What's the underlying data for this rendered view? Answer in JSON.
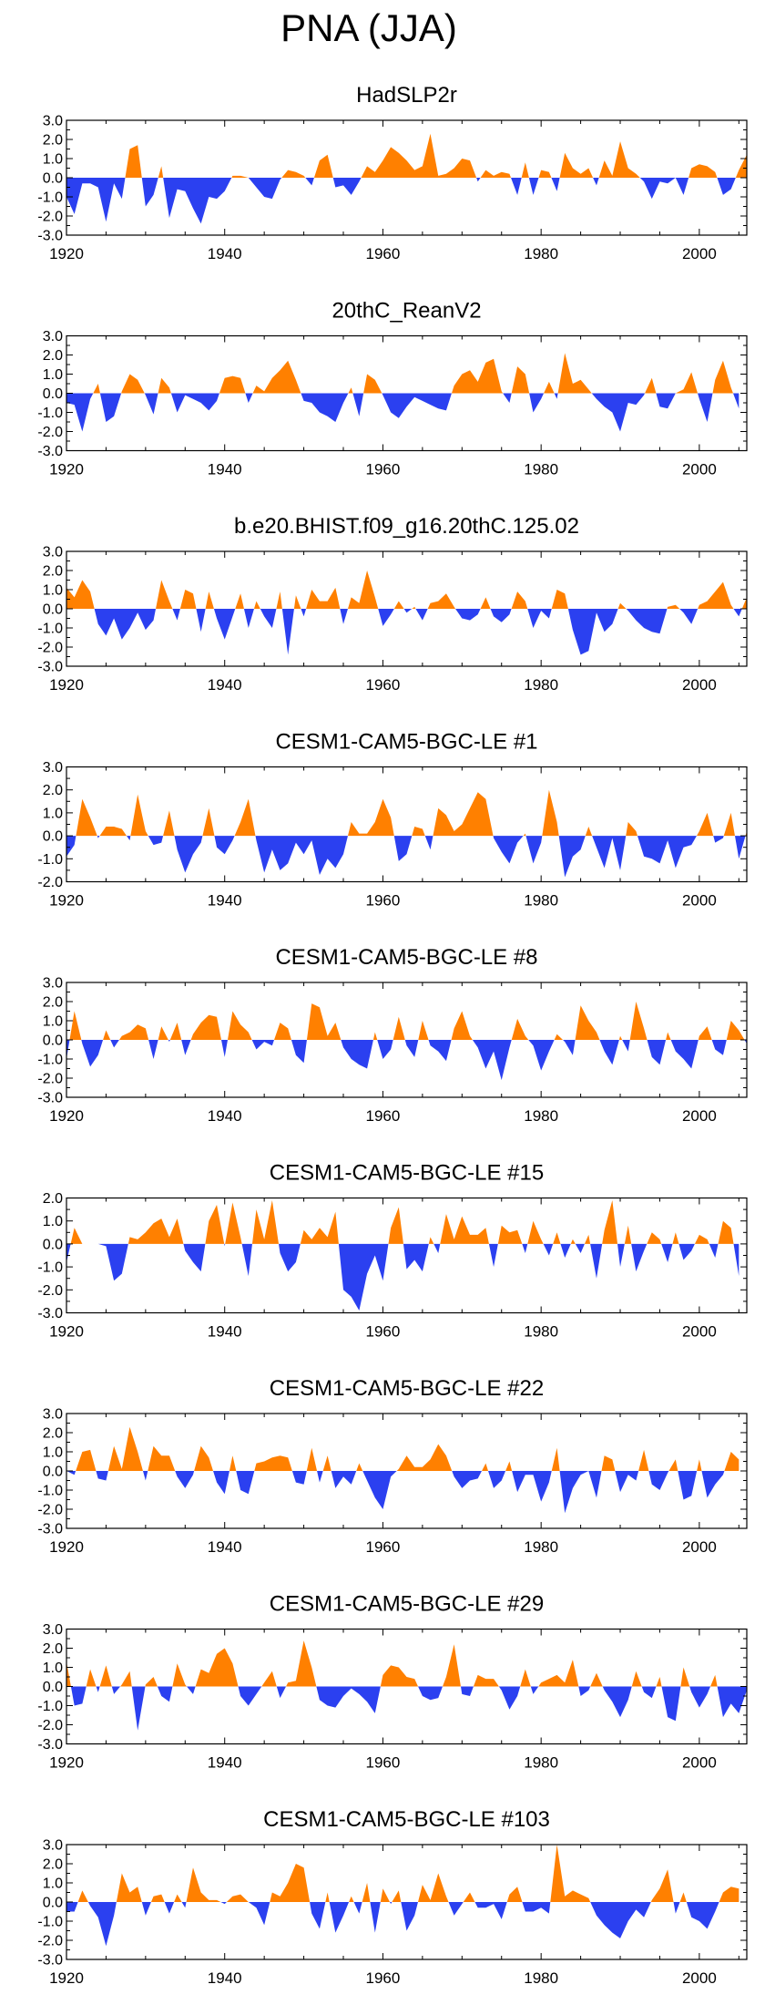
{
  "page_title": "PNA (JJA)",
  "colors": {
    "positive": "#ff8000",
    "negative": "#2b40f0",
    "axis": "#000000"
  },
  "chart_data": [
    {
      "type": "area",
      "title": "HadSLP2r",
      "xlim": [
        1920,
        2006
      ],
      "ylim": [
        -3,
        3
      ],
      "xticks": [
        "1920",
        "1940",
        "1960",
        "1980",
        "2000"
      ],
      "yticks": [
        "3.0",
        "2.0",
        "1.0",
        "0.0",
        "-1.0",
        "-2.0",
        "-3.0"
      ],
      "x_start": 1920,
      "values": [
        -1.0,
        -1.9,
        -0.3,
        -0.3,
        -0.5,
        -2.3,
        -0.3,
        -1.1,
        1.5,
        1.7,
        -1.5,
        -0.9,
        0.6,
        -2.1,
        -0.6,
        -0.7,
        -1.6,
        -2.4,
        -1.0,
        -1.1,
        -0.7,
        0.1,
        0.1,
        0.0,
        -0.5,
        -1.0,
        -1.1,
        -0.1,
        0.4,
        0.3,
        0.1,
        -0.4,
        0.9,
        1.2,
        -0.5,
        -0.4,
        -0.9,
        -0.2,
        0.6,
        0.3,
        0.9,
        1.6,
        1.3,
        0.9,
        0.4,
        0.6,
        2.3,
        0.1,
        0.2,
        0.5,
        1.0,
        0.9,
        -0.2,
        0.4,
        0.1,
        0.3,
        0.2,
        -0.9,
        0.8,
        -0.9,
        0.4,
        0.3,
        -0.7,
        1.3,
        0.5,
        0.2,
        0.5,
        -0.4,
        0.9,
        0.1,
        1.9,
        0.5,
        0.2,
        -0.2,
        -1.1,
        -0.2,
        -0.3,
        0.0,
        -0.9,
        0.5,
        0.7,
        0.6,
        0.3,
        -0.9,
        -0.6,
        0.4,
        1.2
      ]
    },
    {
      "type": "area",
      "title": "20thC_ReanV2",
      "xlim": [
        1920,
        2006
      ],
      "ylim": [
        -3,
        3
      ],
      "xticks": [
        "1920",
        "1940",
        "1960",
        "1980",
        "2000"
      ],
      "yticks": [
        "3.0",
        "2.0",
        "1.0",
        "0.0",
        "-1.0",
        "-2.0",
        "-3.0"
      ],
      "x_start": 1920,
      "values": [
        -0.5,
        -0.6,
        -2.0,
        -0.3,
        0.5,
        -1.5,
        -1.2,
        0.1,
        1.0,
        0.7,
        -0.1,
        -1.1,
        0.8,
        0.3,
        -1.0,
        -0.1,
        -0.3,
        -0.5,
        -0.9,
        -0.4,
        0.8,
        0.9,
        0.8,
        -0.5,
        0.4,
        0.1,
        0.8,
        1.2,
        1.7,
        0.7,
        -0.4,
        -0.5,
        -1.0,
        -1.2,
        -1.5,
        -0.5,
        0.3,
        -1.2,
        1.0,
        0.7,
        -0.1,
        -1.0,
        -1.3,
        -0.7,
        -0.2,
        -0.4,
        -0.6,
        -0.8,
        -0.9,
        0.4,
        1.0,
        1.2,
        0.6,
        1.6,
        1.8,
        0.1,
        -0.5,
        1.4,
        1.0,
        -1.0,
        -0.3,
        0.6,
        -0.3,
        2.1,
        0.5,
        0.7,
        0.2,
        -0.3,
        -0.7,
        -1.0,
        -2.0,
        -0.5,
        -0.6,
        -0.1,
        0.8,
        -0.7,
        -0.8,
        0.0,
        0.2,
        1.1,
        -0.3,
        -1.5,
        0.7,
        1.7,
        0.3,
        -0.8
      ]
    },
    {
      "type": "area",
      "title": "b.e20.BHIST.f09_g16.20thC.125.02",
      "xlim": [
        1920,
        2006
      ],
      "ylim": [
        -3,
        3
      ],
      "xticks": [
        "1920",
        "1940",
        "1960",
        "1980",
        "2000"
      ],
      "yticks": [
        "3.0",
        "2.0",
        "1.0",
        "0.0",
        "-1.0",
        "-2.0",
        "-3.0"
      ],
      "x_start": 1920,
      "values": [
        1.1,
        0.6,
        1.5,
        0.9,
        -0.8,
        -1.4,
        -0.5,
        -1.6,
        -1.0,
        -0.2,
        -1.1,
        -0.6,
        1.5,
        0.4,
        -0.6,
        1.0,
        0.8,
        -1.2,
        0.9,
        -0.5,
        -1.6,
        -0.4,
        0.8,
        -1.0,
        0.4,
        -0.4,
        -1.0,
        0.9,
        -2.4,
        0.7,
        -0.4,
        1.0,
        0.4,
        0.4,
        1.1,
        -0.8,
        0.6,
        0.3,
        2.0,
        0.6,
        -0.9,
        -0.3,
        0.4,
        -0.2,
        0.1,
        -0.6,
        0.3,
        0.4,
        0.8,
        0.1,
        -0.5,
        -0.6,
        -0.3,
        0.6,
        -0.4,
        -0.7,
        -0.3,
        0.9,
        0.4,
        -1.0,
        -0.1,
        -0.5,
        1.0,
        0.8,
        -1.1,
        -2.4,
        -2.2,
        -0.2,
        -1.2,
        -0.8,
        0.3,
        -0.1,
        -0.6,
        -1.0,
        -1.2,
        -1.3,
        0.1,
        0.2,
        -0.2,
        -0.8,
        0.2,
        0.4,
        0.9,
        1.4,
        0.2,
        -0.4,
        0.6
      ]
    },
    {
      "type": "area",
      "title": "CESM1-CAM5-BGC-LE #1",
      "xlim": [
        1920,
        2006
      ],
      "ylim": [
        -2,
        3
      ],
      "xticks": [
        "1920",
        "1940",
        "1960",
        "1980",
        "2000"
      ],
      "yticks": [
        "3.0",
        "2.0",
        "1.0",
        "0.0",
        "-1.0",
        "-2.0"
      ],
      "x_start": 1920,
      "values": [
        -0.9,
        -0.4,
        1.6,
        0.8,
        -0.1,
        0.4,
        0.4,
        0.3,
        -0.2,
        1.8,
        0.2,
        -0.4,
        -0.3,
        1.1,
        -0.6,
        -1.6,
        -0.8,
        -0.3,
        1.2,
        -0.5,
        -0.8,
        -0.2,
        0.6,
        1.6,
        -0.2,
        -1.6,
        -0.6,
        -1.5,
        -1.2,
        -0.3,
        -0.8,
        -0.2,
        -1.7,
        -1.0,
        -1.4,
        -0.8,
        0.6,
        0.1,
        0.1,
        0.6,
        1.6,
        0.8,
        -1.1,
        -0.8,
        0.4,
        0.3,
        -0.6,
        1.2,
        0.9,
        0.2,
        0.5,
        1.2,
        1.9,
        1.6,
        -0.1,
        -0.7,
        -1.2,
        -0.3,
        0.1,
        -1.2,
        -0.3,
        2.0,
        0.6,
        -1.8,
        -0.9,
        -0.6,
        0.4,
        -0.5,
        -1.4,
        -0.1,
        -1.5,
        0.6,
        0.2,
        -0.9,
        -1.0,
        -1.2,
        -0.2,
        -1.4,
        -0.5,
        -0.4,
        0.2,
        1.0,
        -0.3,
        -0.1,
        1.0,
        -1.0,
        0.2
      ]
    },
    {
      "type": "area",
      "title": "CESM1-CAM5-BGC-LE #8",
      "xlim": [
        1920,
        2006
      ],
      "ylim": [
        -3,
        3
      ],
      "xticks": [
        "1920",
        "1940",
        "1960",
        "1980",
        "2000"
      ],
      "yticks": [
        "3.0",
        "2.0",
        "1.0",
        "0.0",
        "-1.0",
        "-2.0",
        "-3.0"
      ],
      "x_start": 1920,
      "values": [
        -1.0,
        1.5,
        -0.2,
        -1.4,
        -0.8,
        0.5,
        -0.4,
        0.2,
        0.4,
        0.8,
        0.6,
        -1.0,
        0.7,
        -0.1,
        0.9,
        -0.8,
        0.3,
        0.9,
        1.3,
        1.2,
        -0.9,
        1.5,
        0.8,
        0.4,
        -0.5,
        -0.1,
        -0.3,
        0.9,
        0.6,
        -0.8,
        -1.2,
        1.9,
        1.7,
        0.2,
        0.9,
        -0.4,
        -1.0,
        -1.3,
        -1.5,
        0.4,
        -1.0,
        -0.5,
        1.2,
        -0.3,
        -0.9,
        1.0,
        -0.3,
        -0.6,
        -1.1,
        0.6,
        1.5,
        0.2,
        -0.4,
        -1.5,
        -0.6,
        -2.1,
        -0.4,
        1.1,
        0.2,
        -0.3,
        -1.6,
        -0.6,
        0.3,
        -0.1,
        -0.8,
        1.8,
        1.0,
        0.4,
        -0.6,
        -1.3,
        0.2,
        -0.6,
        2.0,
        0.6,
        -0.9,
        -1.3,
        0.4,
        -0.6,
        -1.0,
        -1.5,
        0.2,
        0.7,
        -0.5,
        -0.8,
        1.0,
        0.5,
        -0.2
      ]
    },
    {
      "type": "area",
      "title": "CESM1-CAM5-BGC-LE #15",
      "xlim": [
        1920,
        2006
      ],
      "ylim": [
        -3,
        2
      ],
      "xticks": [
        "1920",
        "1940",
        "1960",
        "1980",
        "2000"
      ],
      "yticks": [
        "2.0",
        "1.0",
        "0.0",
        "-1.0",
        "-2.0",
        "-3.0"
      ],
      "x_start": 1920,
      "values": [
        -0.8,
        0.7,
        0.0,
        0.0,
        0.0,
        -0.1,
        -1.6,
        -1.3,
        0.3,
        0.2,
        0.5,
        0.9,
        1.1,
        0.3,
        1.1,
        -0.3,
        -0.8,
        -1.2,
        1.0,
        1.7,
        -0.1,
        1.8,
        0.3,
        -1.4,
        1.5,
        0.2,
        1.9,
        -0.4,
        -1.2,
        -0.8,
        0.6,
        0.2,
        0.7,
        0.3,
        1.4,
        -2.0,
        -2.3,
        -2.9,
        -1.3,
        -0.5,
        -1.6,
        0.7,
        1.6,
        -1.1,
        -0.7,
        -1.2,
        0.3,
        -0.4,
        1.3,
        0.2,
        1.2,
        0.4,
        0.4,
        0.7,
        -1.0,
        0.8,
        0.5,
        0.6,
        -0.4,
        1.0,
        0.2,
        -0.5,
        0.5,
        -0.6,
        0.2,
        -0.4,
        0.4,
        -1.5,
        0.6,
        1.9,
        -1.0,
        0.8,
        -1.2,
        -0.3,
        0.5,
        0.2,
        -0.8,
        0.5,
        -0.7,
        -0.3,
        0.4,
        0.2,
        -0.6,
        1.0,
        0.7,
        -1.4
      ]
    },
    {
      "type": "area",
      "title": "CESM1-CAM5-BGC-LE #22",
      "xlim": [
        1920,
        2006
      ],
      "ylim": [
        -3,
        3
      ],
      "xticks": [
        "1920",
        "1940",
        "1960",
        "1980",
        "2000"
      ],
      "yticks": [
        "3.0",
        "2.0",
        "1.0",
        "0.0",
        "-1.0",
        "-2.0",
        "-3.0"
      ],
      "x_start": 1920,
      "values": [
        0.0,
        -0.2,
        1.0,
        1.1,
        -0.4,
        -0.5,
        1.3,
        0.1,
        2.3,
        1.0,
        -0.5,
        1.3,
        0.8,
        0.8,
        -0.3,
        -0.9,
        -0.2,
        1.3,
        0.7,
        -0.6,
        -1.2,
        0.8,
        -1.0,
        -1.2,
        0.4,
        0.5,
        0.7,
        0.8,
        0.7,
        -0.6,
        -0.7,
        1.2,
        -0.6,
        0.8,
        -0.9,
        -0.3,
        -0.7,
        0.4,
        -0.5,
        -1.4,
        -2.0,
        -0.3,
        0.1,
        0.8,
        0.2,
        0.2,
        0.6,
        1.4,
        0.8,
        -0.3,
        -0.9,
        -0.5,
        -0.4,
        0.4,
        -0.9,
        -0.5,
        0.5,
        -1.1,
        -0.2,
        -0.2,
        -1.6,
        -0.6,
        1.2,
        -2.2,
        -0.9,
        -0.2,
        0.0,
        -1.4,
        0.8,
        0.6,
        -1.1,
        -0.2,
        -0.5,
        1.1,
        -0.7,
        -1.0,
        -0.1,
        0.6,
        -1.5,
        -1.3,
        0.6,
        -1.4,
        -0.7,
        -0.2,
        1.0,
        0.6
      ]
    },
    {
      "type": "area",
      "title": "CESM1-CAM5-BGC-LE #29",
      "xlim": [
        1920,
        2006
      ],
      "ylim": [
        -3,
        3
      ],
      "xticks": [
        "1920",
        "1940",
        "1960",
        "1980",
        "2000"
      ],
      "yticks": [
        "3.0",
        "2.0",
        "1.0",
        "0.0",
        "-1.0",
        "-2.0",
        "-3.0"
      ],
      "x_start": 1920,
      "values": [
        1.3,
        -1.0,
        -0.9,
        0.9,
        -0.3,
        1.1,
        -0.4,
        0.1,
        0.8,
        -2.3,
        0.1,
        0.5,
        -0.5,
        -0.8,
        1.2,
        0.1,
        -0.4,
        0.9,
        0.7,
        1.7,
        2.0,
        1.2,
        -0.5,
        -1.0,
        -0.4,
        0.2,
        0.8,
        -0.6,
        0.2,
        0.3,
        2.4,
        1.0,
        -0.7,
        -1.0,
        -1.1,
        -0.5,
        -0.1,
        -0.4,
        -0.8,
        -1.4,
        0.6,
        1.1,
        1.0,
        0.5,
        0.4,
        -0.5,
        -0.7,
        -0.6,
        0.5,
        2.2,
        -0.4,
        -0.5,
        0.6,
        0.4,
        0.4,
        -0.2,
        -1.2,
        -0.5,
        0.9,
        -0.4,
        0.2,
        0.4,
        0.6,
        0.2,
        1.4,
        -0.5,
        -0.2,
        0.7,
        -0.2,
        -0.8,
        -1.6,
        -0.7,
        0.8,
        -0.3,
        -0.6,
        0.5,
        -1.6,
        -1.8,
        1.0,
        -0.3,
        -1.1,
        -0.4,
        0.6,
        -1.6,
        -0.9,
        -1.4,
        -0.2
      ]
    },
    {
      "type": "area",
      "title": "CESM1-CAM5-BGC-LE #103",
      "xlim": [
        1920,
        2006
      ],
      "ylim": [
        -3,
        3
      ],
      "xticks": [
        "1920",
        "1940",
        "1960",
        "1980",
        "2000"
      ],
      "yticks": [
        "3.0",
        "2.0",
        "1.0",
        "0.0",
        "-1.0",
        "-2.0",
        "-3.0"
      ],
      "x_start": 1920,
      "values": [
        -0.5,
        -0.5,
        0.6,
        -0.2,
        -0.8,
        -2.3,
        -0.7,
        1.5,
        0.5,
        0.8,
        -0.7,
        0.3,
        0.4,
        -0.6,
        0.4,
        -0.3,
        1.8,
        0.5,
        0.1,
        0.1,
        -0.1,
        0.3,
        0.4,
        0.0,
        -0.3,
        -1.2,
        0.5,
        0.3,
        1.0,
        2.0,
        1.8,
        -0.6,
        -1.4,
        0.5,
        -1.6,
        -0.7,
        0.3,
        -0.6,
        1.0,
        -1.6,
        0.7,
        -0.1,
        0.6,
        -1.5,
        -0.7,
        0.9,
        0.1,
        1.5,
        0.3,
        -0.7,
        -0.1,
        0.5,
        -0.3,
        -0.3,
        -0.1,
        -0.9,
        0.4,
        0.8,
        -0.5,
        -0.5,
        -0.3,
        -0.6,
        3.0,
        0.3,
        0.6,
        0.4,
        0.2,
        -0.7,
        -1.2,
        -1.6,
        -1.9,
        -1.0,
        -0.4,
        -0.8,
        0.1,
        0.7,
        1.7,
        -0.6,
        0.5,
        -0.8,
        -1.0,
        -1.4,
        -0.5,
        0.5,
        0.8,
        0.7
      ]
    }
  ]
}
